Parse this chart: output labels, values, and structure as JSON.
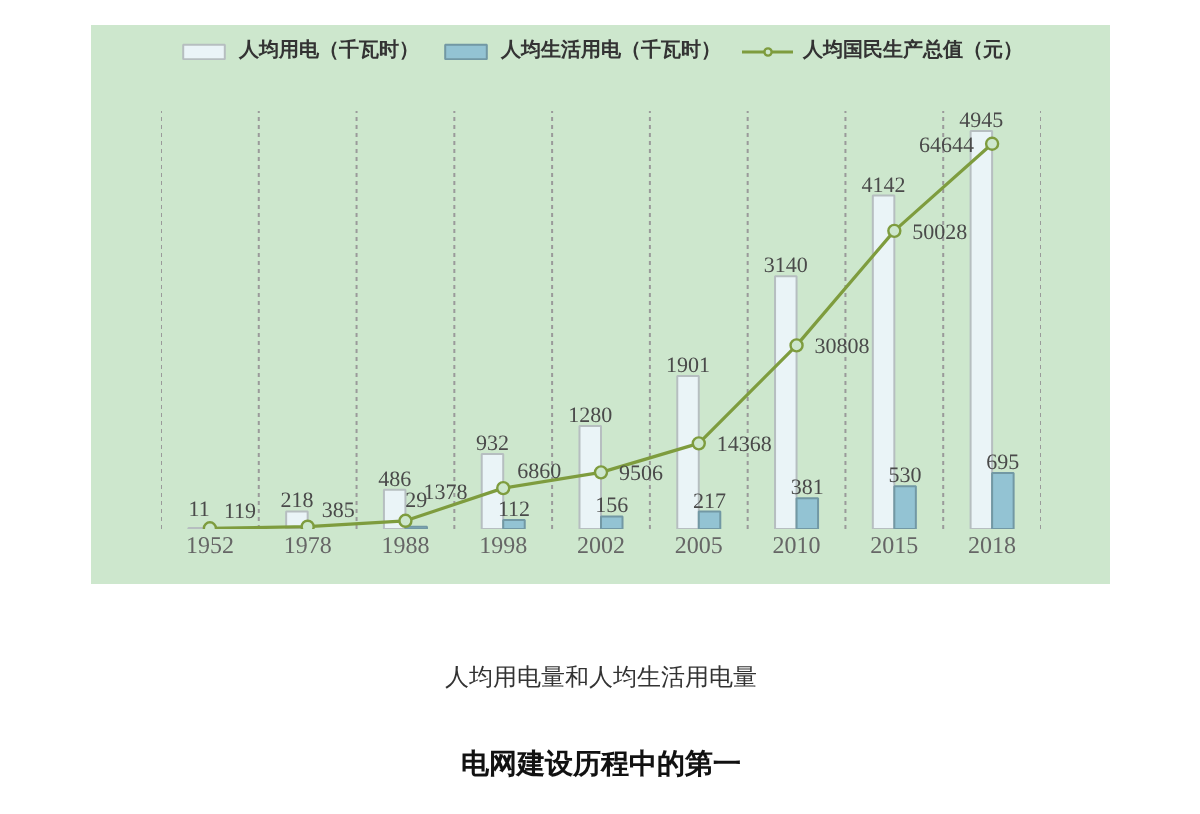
{
  "chart_data": {
    "type": "bar",
    "categories": [
      "1952",
      "1978",
      "1988",
      "1998",
      "2002",
      "2005",
      "2010",
      "2015",
      "2018"
    ],
    "series": [
      {
        "name": "人均用电（千瓦时）",
        "color": "#eaf4f7",
        "values": [
          11,
          218,
          486,
          932,
          1280,
          1901,
          3140,
          4142,
          4945
        ]
      },
      {
        "name": "人均生活用电（千瓦时）",
        "color": "#93c3d3",
        "values": [
          null,
          null,
          29,
          112,
          156,
          217,
          381,
          530,
          695
        ]
      },
      {
        "name": "人均国民生产总值（元）",
        "type": "line",
        "axis": "y2",
        "color": "#7e9c3e",
        "values": [
          119,
          385,
          1378,
          6860,
          9506,
          14368,
          30808,
          50028,
          64644
        ]
      }
    ],
    "tick_labels": "x",
    "data_labels": true,
    "legend": "top",
    "grid": "x",
    "marker": "circle",
    "annotations": [
      "人均用电量和人均生活用电量",
      "电网建设历程中的第一"
    ]
  }
}
